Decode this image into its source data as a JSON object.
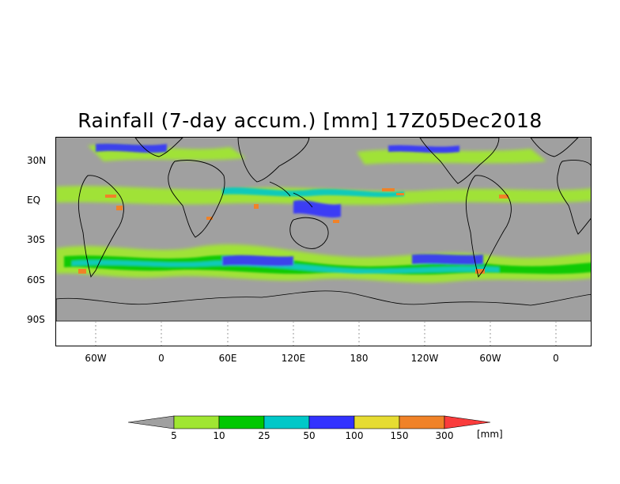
{
  "title": "Rainfall (7-day accum.) [mm] 17Z05Dec2018",
  "y_axis": {
    "labels": [
      "30N",
      "EQ",
      "30S",
      "60S",
      "90S"
    ]
  },
  "x_axis": {
    "labels": [
      "60W",
      "0",
      "60E",
      "120E",
      "180",
      "120W",
      "60W",
      "0"
    ]
  },
  "legend": {
    "unit": "[mm]",
    "ticks": [
      "5",
      "10",
      "25",
      "50",
      "100",
      "150",
      "300"
    ],
    "colors": {
      "below": "#a0a0a0",
      "bins": [
        "#a0e632",
        "#00c800",
        "#00c8c8",
        "#3232ff",
        "#e6dc32",
        "#f08228",
        "#fa3c3c"
      ]
    }
  },
  "map": {
    "background_color": "#a0a0a0",
    "no_data_color": "#ffffff"
  }
}
